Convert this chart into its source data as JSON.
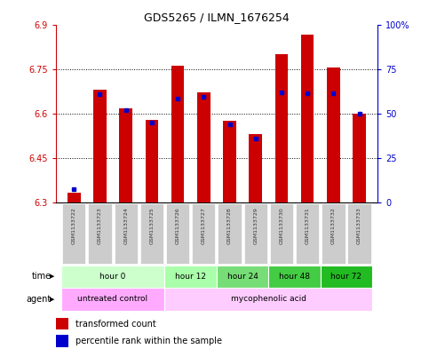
{
  "title": "GDS5265 / ILMN_1676254",
  "samples": [
    "GSM1133722",
    "GSM1133723",
    "GSM1133724",
    "GSM1133725",
    "GSM1133726",
    "GSM1133727",
    "GSM1133728",
    "GSM1133729",
    "GSM1133730",
    "GSM1133731",
    "GSM1133732",
    "GSM1133733"
  ],
  "red_values": [
    6.332,
    6.68,
    6.618,
    6.578,
    6.76,
    6.67,
    6.575,
    6.53,
    6.8,
    6.865,
    6.755,
    6.6
  ],
  "blue_values": [
    6.344,
    6.665,
    6.61,
    6.57,
    6.65,
    6.655,
    6.562,
    6.516,
    6.67,
    6.668,
    6.668,
    6.6
  ],
  "bar_base": 6.3,
  "ylim": [
    6.3,
    6.9
  ],
  "yticks": [
    6.3,
    6.45,
    6.6,
    6.75,
    6.9
  ],
  "ytick_labels_left": [
    "6.3",
    "6.45",
    "6.6",
    "6.75",
    "6.9"
  ],
  "y2ticks": [
    0,
    25,
    50,
    75,
    100
  ],
  "y2tick_labels": [
    "0",
    "25",
    "50",
    "75",
    "100%"
  ],
  "y2lim": [
    0,
    100
  ],
  "red_color": "#cc0000",
  "blue_color": "#0000cc",
  "bar_width": 0.5,
  "plot_bg_color": "#ffffff",
  "time_groups": [
    {
      "label": "hour 0",
      "start": 0,
      "end": 3,
      "color": "#ccffcc"
    },
    {
      "label": "hour 12",
      "start": 4,
      "end": 5,
      "color": "#aaffaa"
    },
    {
      "label": "hour 24",
      "start": 6,
      "end": 7,
      "color": "#77dd77"
    },
    {
      "label": "hour 48",
      "start": 8,
      "end": 9,
      "color": "#44cc44"
    },
    {
      "label": "hour 72",
      "start": 10,
      "end": 11,
      "color": "#22bb22"
    }
  ],
  "agent_groups": [
    {
      "label": "untreated control",
      "start": 0,
      "end": 3,
      "color": "#ffaaff"
    },
    {
      "label": "mycophenolic acid",
      "start": 4,
      "end": 11,
      "color": "#ffccff"
    }
  ],
  "left_axis_color": "#cc0000",
  "right_axis_color": "#0000cc",
  "legend_red_label": "transformed count",
  "legend_blue_label": "percentile rank within the sample",
  "time_label": "time",
  "agent_label": "agent",
  "sample_box_color": "#cccccc"
}
